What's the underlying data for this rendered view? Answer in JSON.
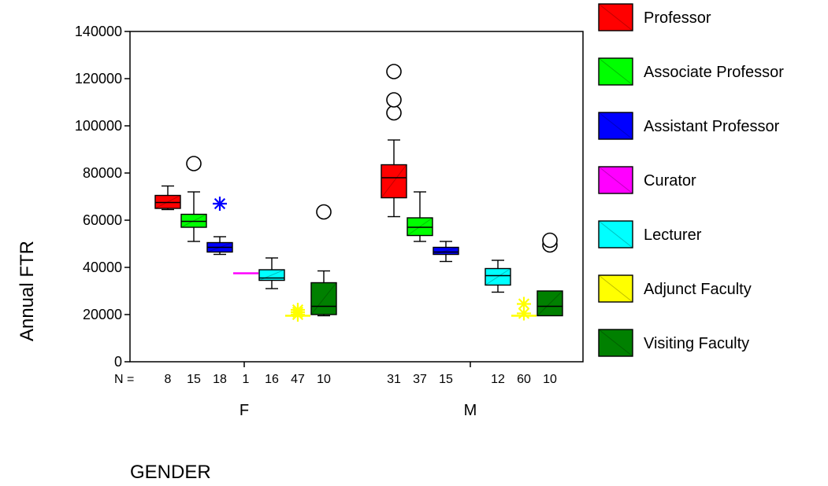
{
  "chart_data": {
    "type": "boxplot",
    "xlabel": "GENDER",
    "ylabel": "Annual FTR",
    "ylim": [
      0,
      140000
    ],
    "yticks": [
      0,
      20000,
      40000,
      60000,
      80000,
      100000,
      120000,
      140000
    ],
    "y_tick_labels": [
      "0",
      "20000",
      "40000",
      "60000",
      "80000",
      "100000",
      "120000",
      "140000"
    ],
    "n_prefix": "N =",
    "groups": [
      "F",
      "M"
    ],
    "legend_position": "right",
    "series": [
      {
        "name": "Professor",
        "color": "#ff0000"
      },
      {
        "name": "Associate Professor",
        "color": "#00ff00"
      },
      {
        "name": "Assistant Professor",
        "color": "#0000ff"
      },
      {
        "name": "Curator",
        "color": "#ff00ff"
      },
      {
        "name": "Lecturer",
        "color": "#00ffff"
      },
      {
        "name": "Adjunct Faculty",
        "color": "#ffff00"
      },
      {
        "name": "Visiting Faculty",
        "color": "#008000"
      }
    ],
    "boxes": [
      {
        "group": "F",
        "series": "Professor",
        "n": "8",
        "wlo": 64500,
        "q1": 65000,
        "med": 67500,
        "q3": 70500,
        "whi": 74500,
        "outliers": [],
        "extremes": []
      },
      {
        "group": "F",
        "series": "Associate Professor",
        "n": "15",
        "wlo": 51000,
        "q1": 57000,
        "med": 59500,
        "q3": 62500,
        "whi": 72000,
        "outliers": [
          84000
        ],
        "extremes": []
      },
      {
        "group": "F",
        "series": "Assistant Professor",
        "n": "18",
        "wlo": 45500,
        "q1": 46500,
        "med": 48500,
        "q3": 50500,
        "whi": 53000,
        "outliers": [],
        "extremes": [
          67000
        ]
      },
      {
        "group": "F",
        "series": "Curator",
        "n": "1",
        "wlo": 37500,
        "q1": 37500,
        "med": 37500,
        "q3": 37500,
        "whi": 37500,
        "outliers": [],
        "extremes": []
      },
      {
        "group": "F",
        "series": "Lecturer",
        "n": "16",
        "wlo": 31000,
        "q1": 34500,
        "med": 35500,
        "q3": 39000,
        "whi": 44000,
        "outliers": [],
        "extremes": []
      },
      {
        "group": "F",
        "series": "Adjunct Faculty",
        "n": "47",
        "wlo": 19500,
        "q1": 19500,
        "med": 19500,
        "q3": 19500,
        "whi": 19500,
        "outliers": [],
        "extremes": [
          20000,
          21000,
          22000
        ]
      },
      {
        "group": "F",
        "series": "Visiting Faculty",
        "n": "10",
        "wlo": 19500,
        "q1": 20000,
        "med": 23500,
        "q3": 33500,
        "whi": 38500,
        "outliers": [
          63500
        ],
        "extremes": []
      },
      {
        "group": "M",
        "series": "Professor",
        "n": "31",
        "wlo": 61500,
        "q1": 69500,
        "med": 78000,
        "q3": 83500,
        "whi": 94000,
        "outliers": [
          105500,
          111000,
          123000
        ],
        "extremes": []
      },
      {
        "group": "M",
        "series": "Associate Professor",
        "n": "37",
        "wlo": 51000,
        "q1": 53500,
        "med": 57000,
        "q3": 61000,
        "whi": 72000,
        "outliers": [],
        "extremes": []
      },
      {
        "group": "M",
        "series": "Assistant Professor",
        "n": "15",
        "wlo": 42500,
        "q1": 45500,
        "med": 46500,
        "q3": 48500,
        "whi": 51000,
        "outliers": [],
        "extremes": []
      },
      {
        "group": "M",
        "series": "Lecturer",
        "n": "12",
        "wlo": 29500,
        "q1": 32500,
        "med": 36500,
        "q3": 39500,
        "whi": 43000,
        "outliers": [],
        "extremes": []
      },
      {
        "group": "M",
        "series": "Adjunct Faculty",
        "n": "60",
        "wlo": 19500,
        "q1": 19500,
        "med": 19500,
        "q3": 19500,
        "whi": 19500,
        "outliers": [],
        "extremes": [
          20500,
          24500
        ]
      },
      {
        "group": "M",
        "series": "Visiting Faculty",
        "n": "10",
        "wlo": 19500,
        "q1": 19500,
        "med": 23500,
        "q3": 30000,
        "whi": 30000,
        "outliers": [
          49500,
          51500
        ],
        "extremes": []
      }
    ]
  }
}
